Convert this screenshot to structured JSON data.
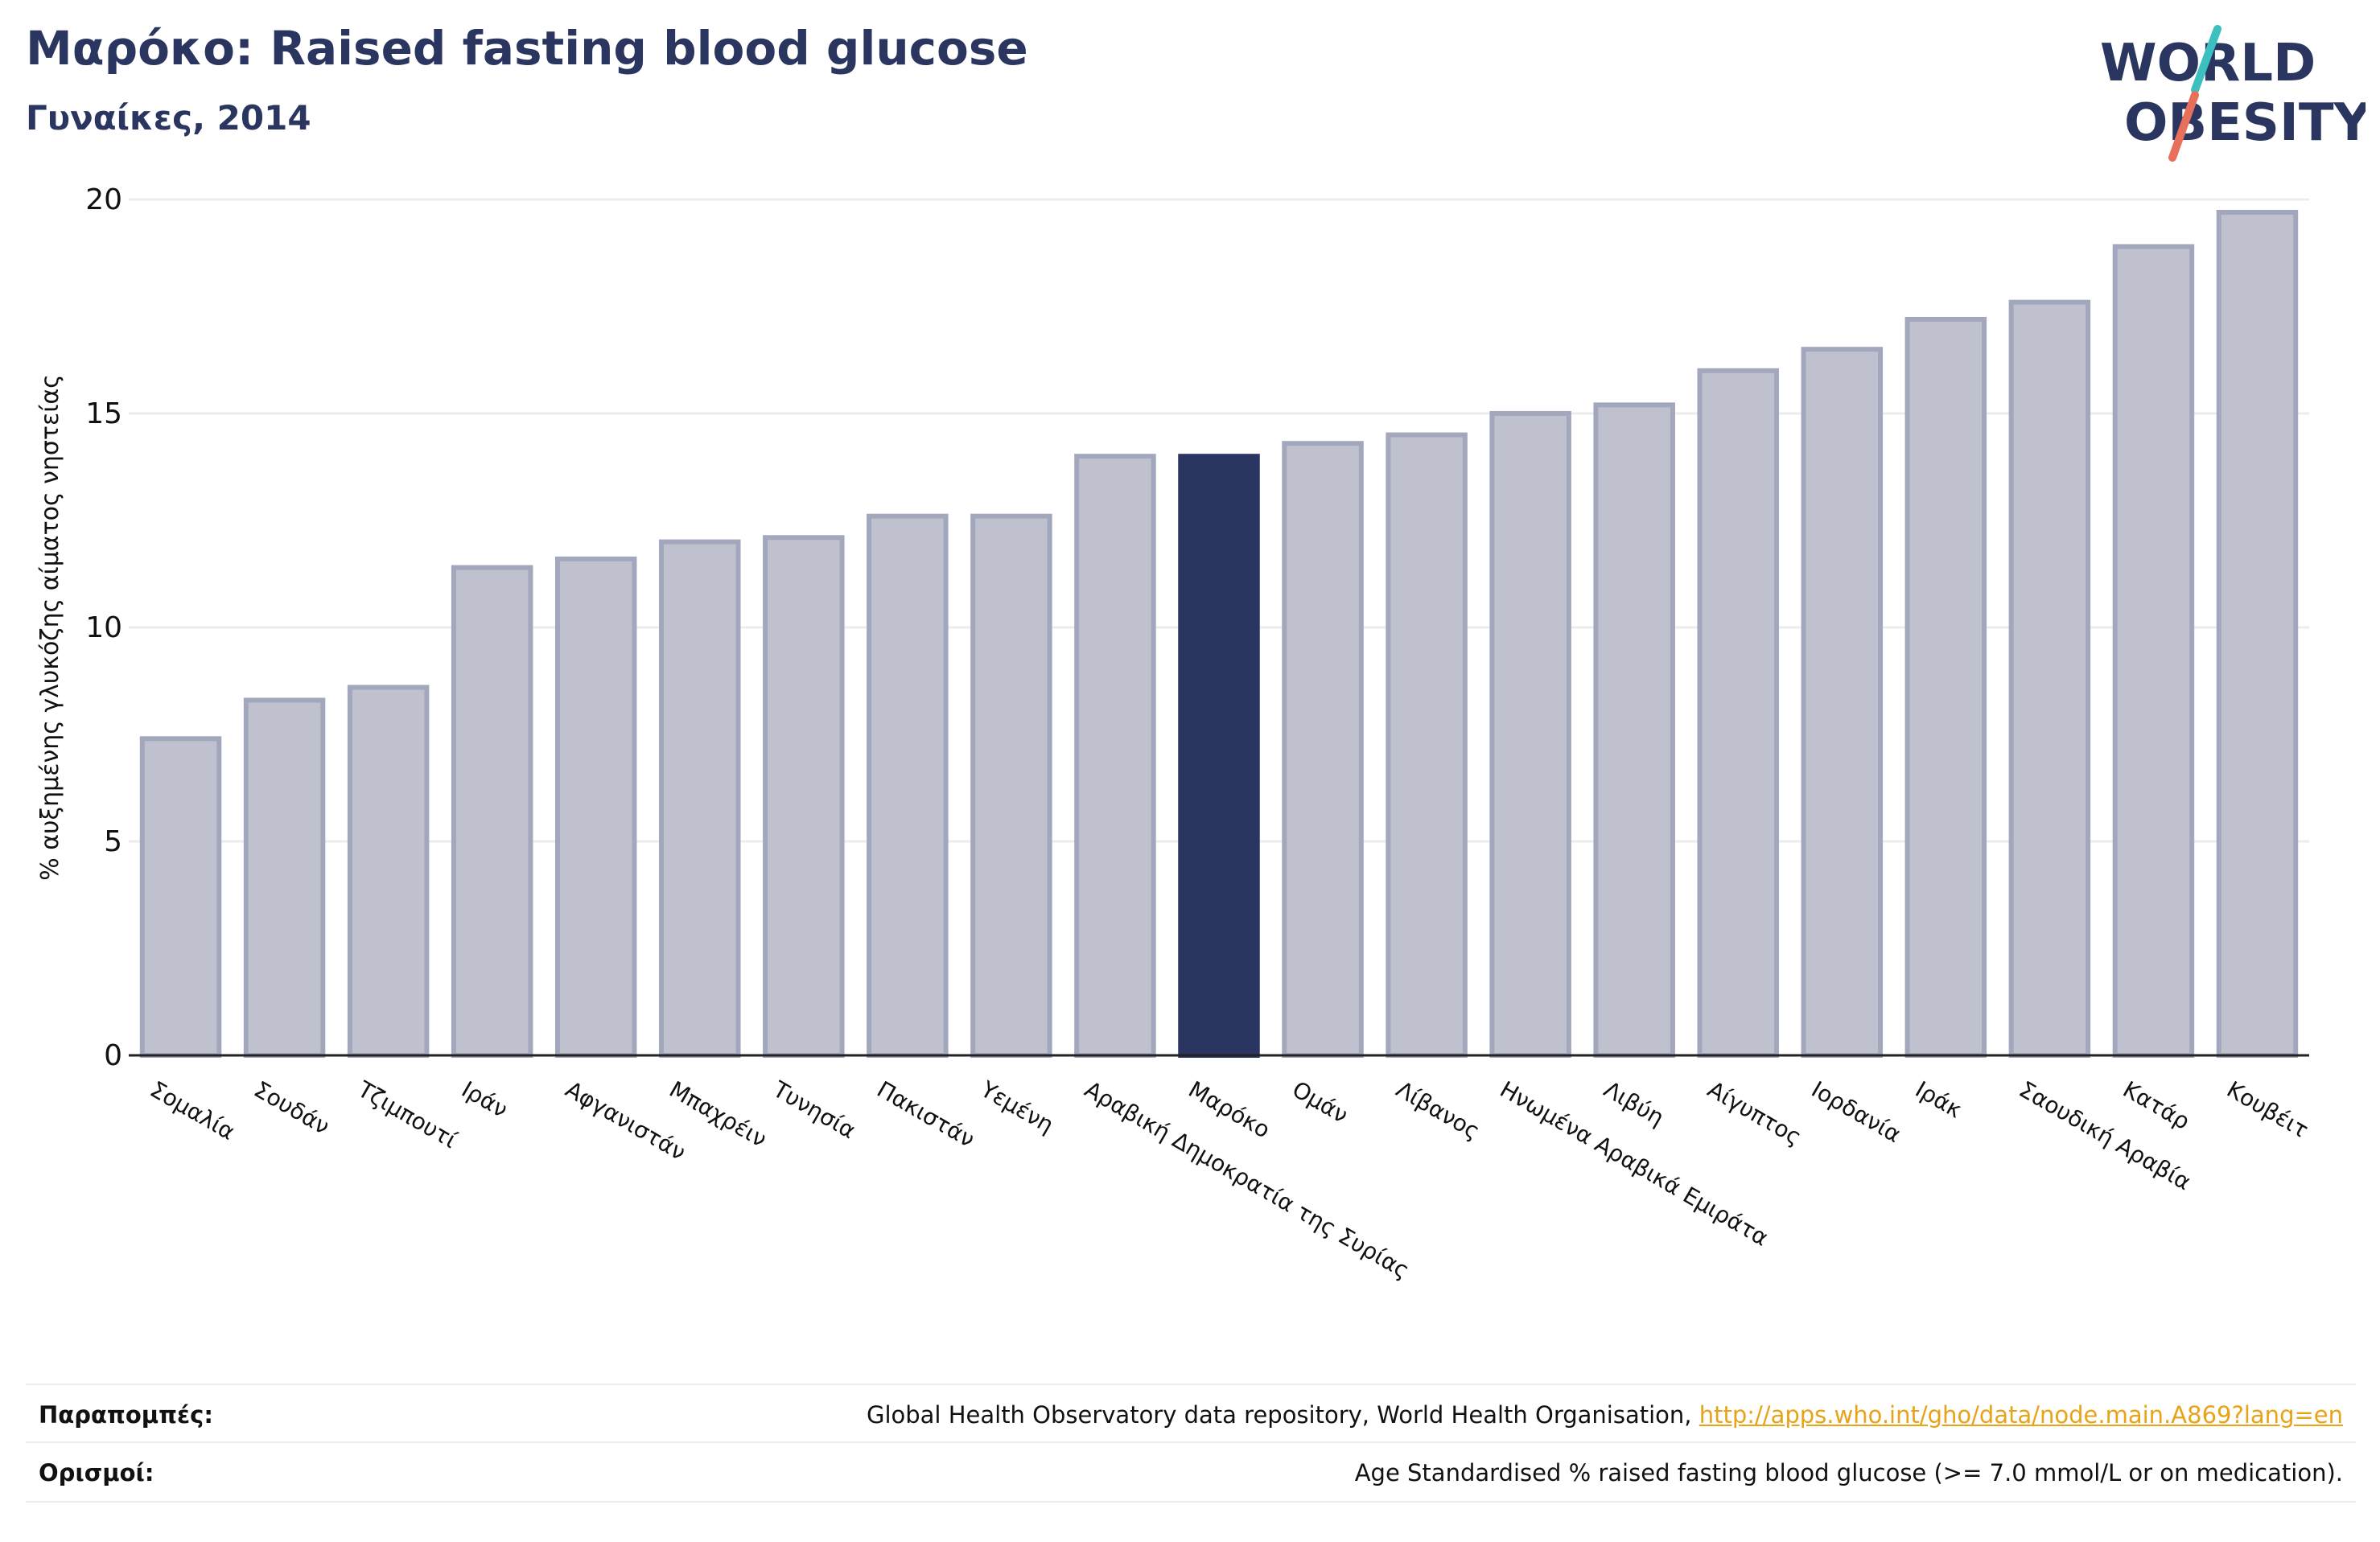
{
  "header": {
    "title": "Μαρόκο: Raised fasting blood glucose",
    "subtitle": "Γυναίκες, 2014"
  },
  "logo": {
    "line1": "WORLD",
    "line2": "OBESITY",
    "color_text": "#2a3560",
    "color_slash_top": "#3bbfbf",
    "color_slash_bottom": "#e8705a"
  },
  "chart_data": {
    "type": "bar",
    "title": "Μαρόκο: Raised fasting blood glucose",
    "subtitle": "Γυναίκες, 2014",
    "ylabel": "% αυξημένης γλυκόζης αίματος νηστείας",
    "xlabel": "",
    "ylim": [
      0,
      20
    ],
    "yticks": [
      0,
      5,
      10,
      15,
      20
    ],
    "grid": true,
    "highlight": "Μαρόκο",
    "colors": {
      "bar": "#bfc2ce",
      "bar_border": "#a3a7bd",
      "highlight": "#2b3561"
    },
    "categories": [
      "Σομαλία",
      "Σουδάν",
      "Τζιμπουτί",
      "Ιράν",
      "Αφγανιστάν",
      "Μπαχρέιν",
      "Τυνησία",
      "Πακιστάν",
      "Υεμένη",
      "Αραβική Δημοκρατία της Συρίας",
      "Μαρόκο",
      "Ομάν",
      "Λίβανος",
      "Ηνωμένα Αραβικά Εμιράτα",
      "Λιβύη",
      "Αίγυπτος",
      "Ιορδανία",
      "Ιράκ",
      "Σαουδική Αραβία",
      "Κατάρ",
      "Κουβέιτ"
    ],
    "values": [
      7.4,
      8.3,
      8.6,
      11.4,
      11.6,
      12.0,
      12.1,
      12.6,
      12.6,
      14.0,
      14.0,
      14.3,
      14.5,
      15.0,
      15.2,
      16.0,
      16.5,
      17.2,
      17.6,
      18.9,
      19.7
    ]
  },
  "footer": {
    "references_label": "Παραπομπές:",
    "references_text": "Global Health Observatory data repository, World Health Organisation,",
    "references_link": "http://apps.who.int/gho/data/node.main.A869?lang=en",
    "definitions_label": "Ορισμοί:",
    "definitions_text": "Age Standardised % raised fasting blood glucose (>= 7.0 mmol/L or on medication)."
  }
}
